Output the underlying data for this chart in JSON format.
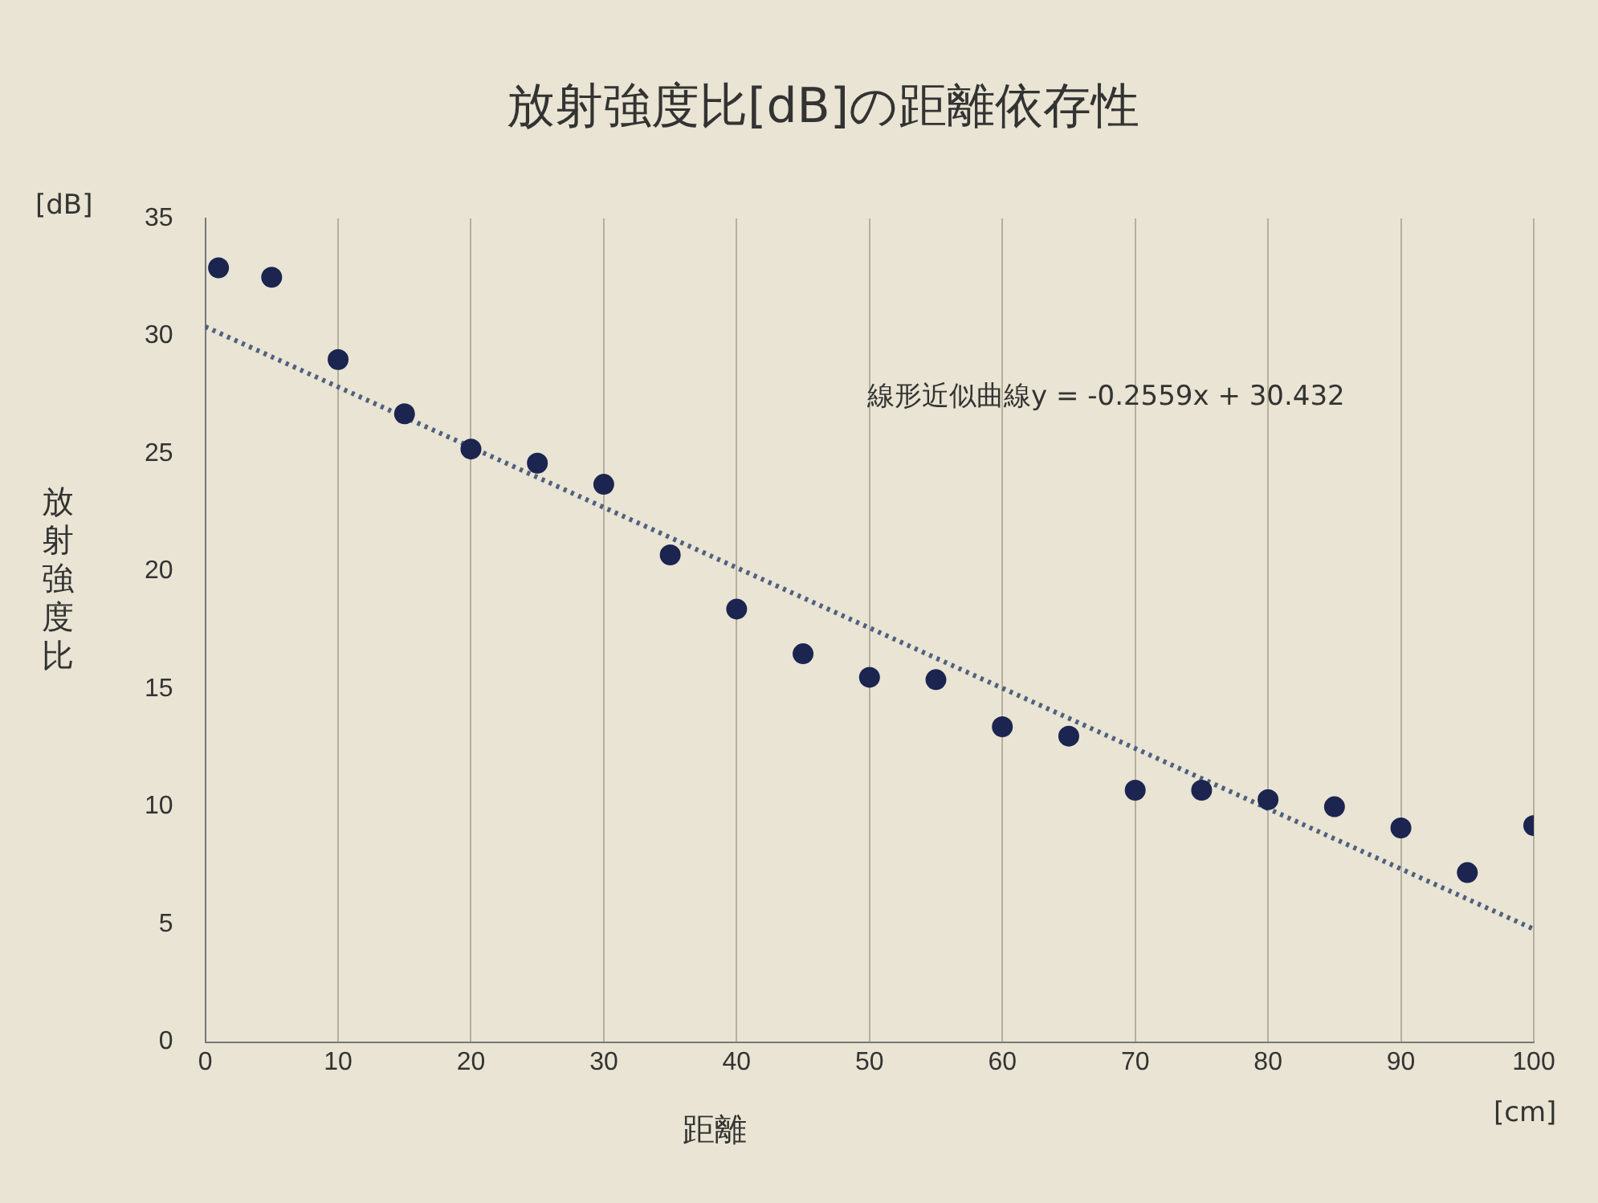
{
  "chart_data": {
    "type": "scatter",
    "title": "放射強度比[dB]の距離依存性",
    "xlabel": "距離",
    "ylabel": "放射強度比",
    "annotations": [
      "[dB]",
      "[cm]",
      "線形近似曲線y = -0.2559x + 30.432"
    ],
    "x": [
      1,
      5,
      10,
      15,
      20,
      25,
      30,
      35,
      40,
      45,
      50,
      55,
      60,
      65,
      70,
      75,
      80,
      85,
      90,
      95,
      100
    ],
    "series": [
      {
        "color": "#1c2550",
        "values": [
          32.9,
          32.5,
          29.0,
          26.7,
          25.2,
          24.6,
          23.7,
          20.7,
          18.4,
          16.5,
          15.5,
          15.4,
          13.4,
          13.0,
          10.7,
          10.7,
          10.3,
          10.0,
          9.1,
          7.2,
          9.2
        ]
      },
      {
        "type": "line",
        "line_style": "dotted",
        "marker": "none",
        "color": "#4f6080",
        "x": [
          0,
          100
        ],
        "values": [
          30.4,
          4.8
        ]
      }
    ],
    "xlim": [
      0,
      100
    ],
    "xticks": [
      0,
      10,
      20,
      30,
      40,
      50,
      60,
      70,
      80,
      90,
      100
    ],
    "ylim": [
      0,
      35
    ],
    "yticks": [
      0,
      5,
      10,
      15,
      20,
      25,
      30,
      35
    ],
    "grid": "x",
    "legend": false,
    "marker": "circle"
  }
}
